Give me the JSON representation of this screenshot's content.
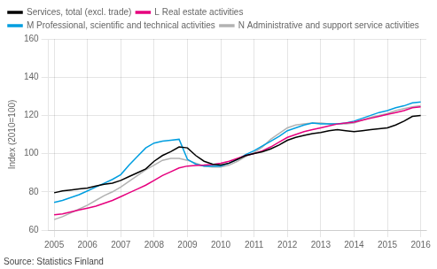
{
  "chart_data": {
    "type": "line",
    "ylabel": "Index (2010=100)",
    "annotations": [
      "Source: Statistics Finland"
    ],
    "x": [
      2005.0,
      2005.25,
      2005.5,
      2005.75,
      2006.0,
      2006.25,
      2006.5,
      2006.75,
      2007.0,
      2007.25,
      2007.5,
      2007.75,
      2008.0,
      2008.25,
      2008.5,
      2008.75,
      2009.0,
      2009.25,
      2009.5,
      2009.75,
      2010.0,
      2010.25,
      2010.5,
      2010.75,
      2011.0,
      2011.25,
      2011.5,
      2011.75,
      2012.0,
      2012.25,
      2012.5,
      2012.75,
      2013.0,
      2013.25,
      2013.5,
      2013.75,
      2014.0,
      2014.25,
      2014.5,
      2014.75,
      2015.0,
      2015.25,
      2015.5,
      2015.75,
      2016.0
    ],
    "series": [
      {
        "name": "Services, total (excl. trade)",
        "color": "#000000",
        "values": [
          79.5,
          80.5,
          81.0,
          81.5,
          82.0,
          83.0,
          84.0,
          84.5,
          86.0,
          88.0,
          90.0,
          92.0,
          96.0,
          99.0,
          101.0,
          103.5,
          103.0,
          99.0,
          96.0,
          94.5,
          94.0,
          95.0,
          97.0,
          99.0,
          100.0,
          101.0,
          102.5,
          104.5,
          107.0,
          108.5,
          109.5,
          110.5,
          111.0,
          112.0,
          112.5,
          112.0,
          111.5,
          112.0,
          112.5,
          113.0,
          113.5,
          115.0,
          117.0,
          119.5,
          120.0
        ]
      },
      {
        "name": "L Real estate activities",
        "color": "#e6007e",
        "values": [
          68.0,
          68.5,
          69.5,
          70.5,
          71.5,
          72.5,
          74.0,
          75.5,
          77.5,
          79.5,
          81.5,
          83.5,
          86.0,
          88.5,
          90.5,
          92.5,
          93.5,
          93.8,
          94.0,
          94.3,
          95.0,
          96.0,
          97.5,
          99.0,
          100.0,
          101.5,
          103.5,
          106.0,
          108.5,
          110.0,
          111.5,
          112.5,
          113.5,
          114.5,
          115.5,
          116.0,
          116.5,
          117.5,
          118.5,
          119.5,
          120.5,
          121.5,
          122.5,
          124.0,
          124.5
        ]
      },
      {
        "name": "M Professional, scientific and technical activities",
        "color": "#009ee0",
        "values": [
          74.5,
          75.5,
          77.0,
          78.5,
          80.5,
          82.5,
          84.5,
          86.5,
          89.0,
          94.0,
          98.5,
          103.0,
          105.5,
          106.5,
          107.0,
          107.5,
          97.0,
          94.5,
          93.5,
          93.5,
          93.5,
          95.0,
          97.0,
          99.5,
          101.5,
          104.0,
          106.5,
          109.0,
          112.0,
          113.5,
          115.0,
          116.0,
          115.5,
          115.5,
          115.5,
          116.0,
          117.0,
          118.5,
          120.0,
          121.5,
          122.5,
          124.0,
          125.0,
          126.5,
          127.0
        ]
      },
      {
        "name": "N Administrative and support service activities",
        "color": "#b2b2b2",
        "values": [
          65.5,
          67.0,
          69.0,
          71.0,
          73.0,
          75.5,
          78.0,
          80.0,
          82.5,
          85.5,
          88.5,
          91.5,
          94.0,
          96.5,
          97.5,
          97.5,
          96.5,
          95.0,
          93.5,
          93.0,
          93.0,
          94.0,
          96.0,
          98.5,
          100.5,
          103.5,
          107.5,
          110.5,
          113.5,
          115.0,
          115.5,
          116.0,
          116.0,
          115.5,
          115.5,
          115.5,
          116.0,
          117.5,
          119.0,
          120.0,
          121.0,
          122.5,
          123.5,
          124.5,
          125.0
        ]
      }
    ],
    "xlim": [
      2004.83,
      2016.17
    ],
    "xticks": [
      2005,
      2006,
      2007,
      2008,
      2009,
      2010,
      2011,
      2012,
      2013,
      2014,
      2015,
      2016
    ],
    "ylim": [
      60,
      160
    ],
    "yticks": [
      60,
      80,
      100,
      120,
      140,
      160
    ],
    "grid": true,
    "legend": "upper left"
  }
}
